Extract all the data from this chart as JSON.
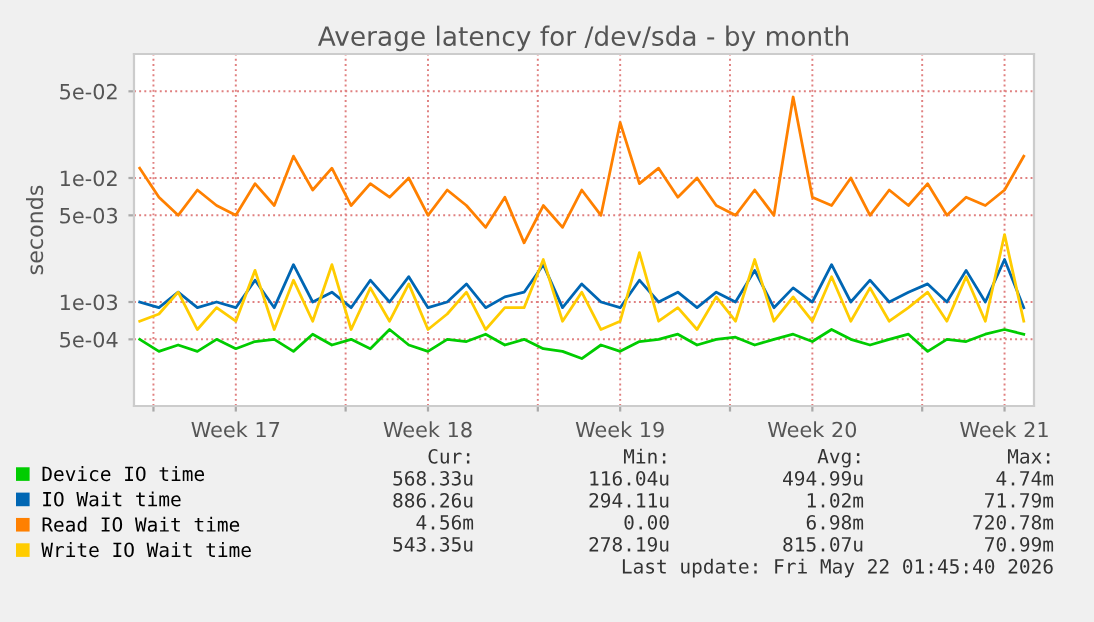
{
  "chart_data": {
    "type": "line",
    "title": "Average latency for /dev/sda - by month",
    "ylabel": "seconds",
    "x": [
      "2026-04-19T12:00",
      "2026-04-20T04:48",
      "2026-04-20T21:36",
      "2026-04-21T14:24",
      "2026-04-22T07:12",
      "2026-04-23T00:00",
      "2026-04-23T16:48",
      "2026-04-24T09:36",
      "2026-04-25T02:24",
      "2026-04-25T19:12",
      "2026-04-26T12:00",
      "2026-04-27T04:48",
      "2026-04-27T21:36",
      "2026-04-28T14:24",
      "2026-04-29T07:12",
      "2026-04-30T00:00",
      "2026-04-30T16:48",
      "2026-05-01T09:36",
      "2026-05-02T02:24",
      "2026-05-02T19:12",
      "2026-05-03T12:00",
      "2026-05-04T04:48",
      "2026-05-04T21:36",
      "2026-05-05T14:24",
      "2026-05-06T07:12",
      "2026-05-07T00:00",
      "2026-05-07T16:48",
      "2026-05-08T09:36",
      "2026-05-09T02:24",
      "2026-05-09T19:12",
      "2026-05-10T12:00",
      "2026-05-11T04:48",
      "2026-05-11T21:36",
      "2026-05-12T14:24",
      "2026-05-13T07:12",
      "2026-05-14T00:00",
      "2026-05-14T16:48",
      "2026-05-15T09:36",
      "2026-05-16T02:24",
      "2026-05-16T19:12",
      "2026-05-17T12:00",
      "2026-05-18T04:48",
      "2026-05-18T21:36",
      "2026-05-19T14:24",
      "2026-05-20T07:12",
      "2026-05-21T00:00",
      "2026-05-21T16:48"
    ],
    "series": [
      {
        "name": "Device IO time",
        "color": "#00cc00",
        "values": [
          0.0005,
          0.0004,
          0.00045,
          0.0004,
          0.0005,
          0.00042,
          0.00048,
          0.0005,
          0.0004,
          0.00055,
          0.00045,
          0.0005,
          0.00042,
          0.0006,
          0.00045,
          0.0004,
          0.0005,
          0.00048,
          0.00055,
          0.00045,
          0.0005,
          0.00042,
          0.0004,
          0.00035,
          0.00045,
          0.0004,
          0.00048,
          0.0005,
          0.00055,
          0.00045,
          0.0005,
          0.00052,
          0.00045,
          0.0005,
          0.00055,
          0.00048,
          0.0006,
          0.0005,
          0.00045,
          0.0005,
          0.00055,
          0.0004,
          0.0005,
          0.00048,
          0.00055,
          0.0006,
          0.00055
        ]
      },
      {
        "name": "IO Wait time",
        "color": "#0066b3",
        "values": [
          0.001,
          0.0009,
          0.0012,
          0.0009,
          0.001,
          0.0009,
          0.0015,
          0.0009,
          0.002,
          0.001,
          0.0012,
          0.0009,
          0.0015,
          0.001,
          0.0016,
          0.0009,
          0.001,
          0.0014,
          0.0009,
          0.0011,
          0.0012,
          0.002,
          0.0009,
          0.0014,
          0.001,
          0.0009,
          0.0015,
          0.001,
          0.0012,
          0.0009,
          0.0012,
          0.001,
          0.0018,
          0.0009,
          0.0013,
          0.001,
          0.002,
          0.001,
          0.0015,
          0.001,
          0.0012,
          0.0014,
          0.001,
          0.0018,
          0.001,
          0.0022,
          0.0009
        ]
      },
      {
        "name": "Read IO Wait time",
        "color": "#ff8000",
        "values": [
          0.012,
          0.007,
          0.005,
          0.008,
          0.006,
          0.005,
          0.009,
          0.006,
          0.015,
          0.008,
          0.012,
          0.006,
          0.009,
          0.007,
          0.01,
          0.005,
          0.008,
          0.006,
          0.004,
          0.007,
          0.003,
          0.006,
          0.004,
          0.008,
          0.005,
          0.028,
          0.009,
          0.012,
          0.007,
          0.01,
          0.006,
          0.005,
          0.008,
          0.005,
          0.045,
          0.007,
          0.006,
          0.01,
          0.005,
          0.008,
          0.006,
          0.009,
          0.005,
          0.007,
          0.006,
          0.008,
          0.015
        ]
      },
      {
        "name": "Write IO Wait time",
        "color": "#ffcc00",
        "values": [
          0.0007,
          0.0008,
          0.0012,
          0.0006,
          0.0009,
          0.0007,
          0.0018,
          0.0006,
          0.0015,
          0.0007,
          0.002,
          0.0006,
          0.0013,
          0.0007,
          0.0014,
          0.0006,
          0.0008,
          0.0012,
          0.0006,
          0.0009,
          0.0009,
          0.0022,
          0.0007,
          0.0012,
          0.0006,
          0.0007,
          0.0025,
          0.0007,
          0.0009,
          0.0006,
          0.0011,
          0.0007,
          0.0022,
          0.0007,
          0.0011,
          0.0007,
          0.0016,
          0.0007,
          0.0013,
          0.0007,
          0.0009,
          0.0012,
          0.0007,
          0.0016,
          0.0007,
          0.0035,
          0.0007
        ]
      }
    ],
    "log": "y",
    "xlim": [
      "2026-04-19T07:00",
      "2026-05-22T01:45"
    ],
    "xticks": [
      {
        "value": "2026-04-20",
        "label": null
      },
      {
        "value": "2026-04-23",
        "label": "Week 17"
      },
      {
        "value": "2026-04-27",
        "label": null
      },
      {
        "value": "2026-04-30",
        "label": "Week 18"
      },
      {
        "value": "2026-05-04",
        "label": null
      },
      {
        "value": "2026-05-07",
        "label": "Week 19"
      },
      {
        "value": "2026-05-11",
        "label": null
      },
      {
        "value": "2026-05-14",
        "label": "Week 20"
      },
      {
        "value": "2026-05-18",
        "label": null
      },
      {
        "value": "2026-05-21",
        "label": "Week 21"
      }
    ],
    "ylim": [
      0.000145,
      0.1
    ],
    "yticks": [
      {
        "value": 0.0005,
        "label": "5e-04"
      },
      {
        "value": 0.001,
        "label": "1e-03"
      },
      {
        "value": 0.005,
        "label": "5e-03"
      },
      {
        "value": 0.01,
        "label": "1e-02"
      },
      {
        "value": 0.05,
        "label": "5e-02"
      }
    ],
    "grid": true,
    "legend": "bottom",
    "marker": "none",
    "line_style": "solid",
    "annotations": [
      "Cur:",
      "Min:",
      "Avg:",
      "Max:",
      "568.33u",
      "116.04u",
      "494.99u",
      "4.74m",
      "886.26u",
      "294.11u",
      "1.02m",
      "71.79m",
      "4.56m",
      "0.00",
      "6.98m",
      "720.78m",
      "543.35u",
      "278.19u",
      "815.07u",
      "70.99m",
      "Last update: Fri May 22 01:45:40 2026"
    ]
  }
}
